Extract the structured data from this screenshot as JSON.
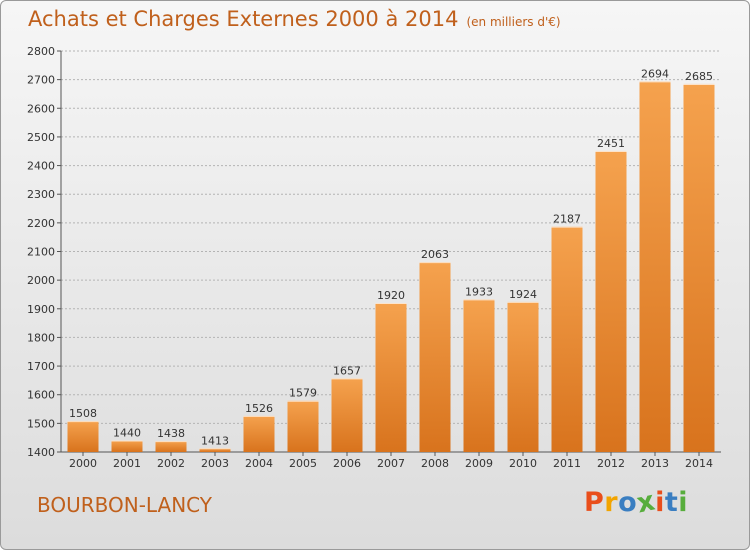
{
  "header": {
    "title": "Achats et Charges Externes 2000 à 2014",
    "subtitle": "(en milliers d'€)"
  },
  "footer": {
    "city": "BOURBON-LANCY",
    "logo_text": "Proxiti"
  },
  "colors": {
    "bar_top": "#f5a24e",
    "bar_bottom": "#d8731d",
    "title": "#c0601c",
    "logo": [
      "#e94e1b",
      "#f2a400",
      "#3a7ec1",
      "#57ad3c",
      "#e94e1b",
      "#3a7ec1",
      "#57ad3c"
    ]
  },
  "chart_data": {
    "type": "bar",
    "title": "Achats et Charges Externes 2000 à 2014",
    "subtitle": "(en milliers d'€)",
    "categories": [
      "2000",
      "2001",
      "2002",
      "2003",
      "2004",
      "2005",
      "2006",
      "2007",
      "2008",
      "2009",
      "2010",
      "2011",
      "2012",
      "2013",
      "2014"
    ],
    "values": [
      1508,
      1440,
      1438,
      1413,
      1526,
      1579,
      1657,
      1920,
      2063,
      1933,
      1924,
      2187,
      2451,
      2694,
      2685
    ],
    "ylim": [
      1400,
      2800
    ],
    "yticks": [
      1400,
      1500,
      1600,
      1700,
      1800,
      1900,
      2000,
      2100,
      2200,
      2300,
      2400,
      2500,
      2600,
      2700,
      2800
    ],
    "grid": true
  }
}
